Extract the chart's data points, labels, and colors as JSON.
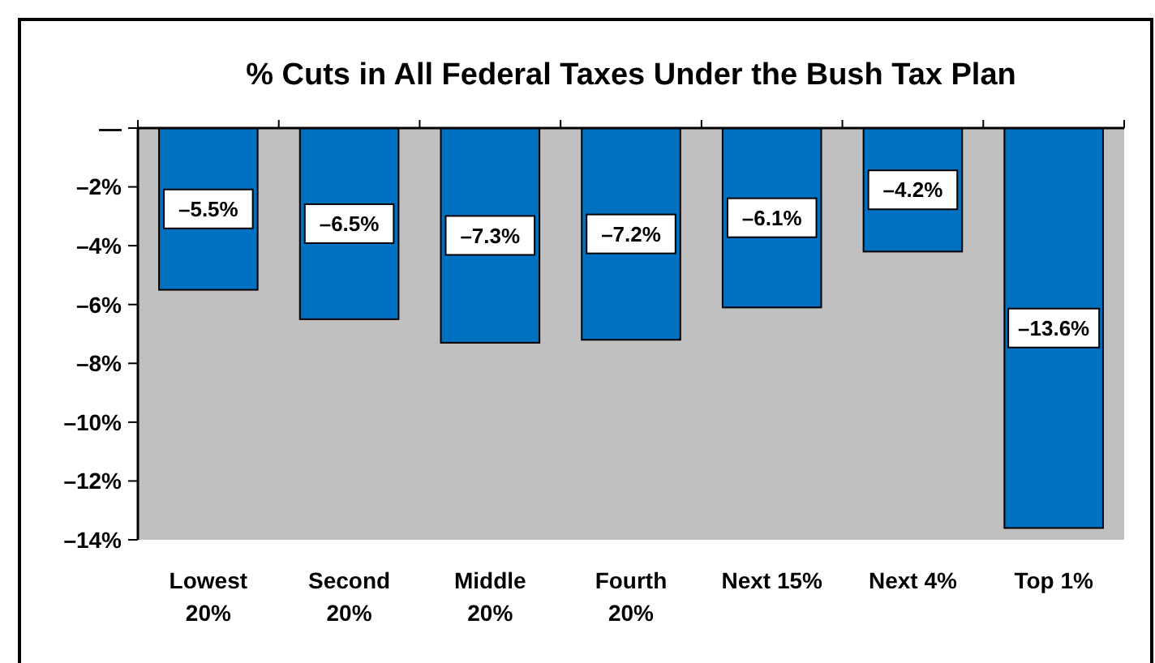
{
  "chart_data": {
    "type": "bar",
    "title": "% Cuts in All Federal Taxes Under the Bush Tax Plan",
    "categories": [
      "Lowest\n20%",
      "Second\n20%",
      "Middle\n20%",
      "Fourth\n20%",
      "Next 15%",
      "Next 4%",
      "Top 1%"
    ],
    "values": [
      -5.5,
      -6.5,
      -7.3,
      -7.2,
      -6.1,
      -4.2,
      -13.6
    ],
    "value_labels": [
      "–5.5%",
      "–6.5%",
      "–7.3%",
      "–7.2%",
      "–6.1%",
      "–4.2%",
      "–13.6%"
    ],
    "color": "#0070c0",
    "ylim": [
      -14,
      0
    ],
    "yticks": [
      {
        "value": 0,
        "label": "—"
      },
      {
        "value": -2,
        "label": "–2%"
      },
      {
        "value": -4,
        "label": "–4%"
      },
      {
        "value": -6,
        "label": "–6%"
      },
      {
        "value": -8,
        "label": "–8%"
      },
      {
        "value": -10,
        "label": "–10%"
      },
      {
        "value": -12,
        "label": "–12%"
      },
      {
        "value": -14,
        "label": "–14%"
      }
    ],
    "grid": false
  }
}
